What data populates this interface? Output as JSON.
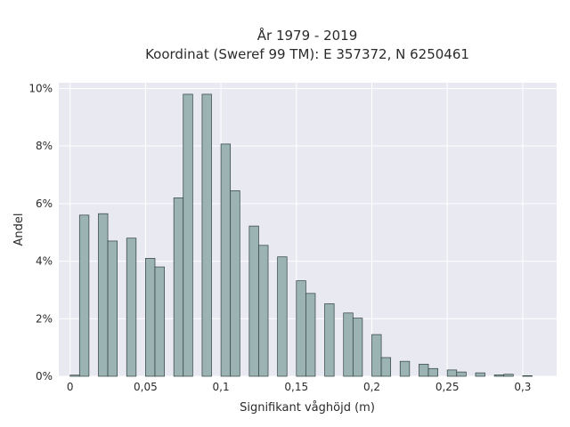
{
  "chart_data": {
    "type": "bar",
    "title_lines": [
      "År 1979 - 2019",
      "Koordinat (Sweref 99 TM): E 357372, N 6250461"
    ],
    "xlabel": "Signifikant våghöjd (m)",
    "ylabel": "Andel",
    "x_tick_values": [
      0,
      0.05,
      0.1,
      0.15,
      0.2,
      0.25,
      0.3
    ],
    "x_tick_labels": [
      "0",
      "0,05",
      "0,1",
      "0,15",
      "0,2",
      "0,25",
      "0,3"
    ],
    "y_tick_values": [
      0,
      2,
      4,
      6,
      8,
      10
    ],
    "y_tick_labels": [
      "0%",
      "2%",
      "4%",
      "6%",
      "8%",
      "10%"
    ],
    "xlim": [
      -0.0075,
      0.3225
    ],
    "ylim": [
      0,
      10.2
    ],
    "bin_width": 0.00625,
    "bar_color": "#9bb3b3",
    "bar_edge_color": "#2f3f3f",
    "plot_background": "#e9e9f1",
    "grid": true,
    "series": [
      {
        "x": [
          0.0,
          0.00625,
          0.0125,
          0.01875,
          0.025,
          0.03125,
          0.0375,
          0.04375,
          0.05,
          0.05625,
          0.0625,
          0.06875,
          0.075,
          0.08125,
          0.0875,
          0.09375,
          0.1,
          0.10625,
          0.1125,
          0.11875,
          0.125,
          0.13125,
          0.1375,
          0.14375,
          0.15,
          0.15625,
          0.1625,
          0.16875,
          0.175,
          0.18125,
          0.1875,
          0.19375,
          0.2,
          0.20625,
          0.2125,
          0.21875,
          0.225,
          0.23125,
          0.2375,
          0.24375,
          0.25,
          0.25625,
          0.2625,
          0.26875,
          0.275,
          0.28125,
          0.2875,
          0.29375,
          0.3
        ],
        "values": [
          0.04,
          5.6,
          0,
          5.65,
          4.7,
          0,
          4.8,
          0,
          4.1,
          3.8,
          0,
          6.2,
          9.8,
          0,
          9.8,
          0,
          8.07,
          6.45,
          0,
          5.22,
          4.55,
          0,
          4.15,
          0,
          3.32,
          2.88,
          0,
          2.52,
          0,
          2.2,
          2.02,
          0,
          1.45,
          0.65,
          0,
          0.52,
          0,
          0.42,
          0.27,
          0,
          0.22,
          0.15,
          0,
          0.12,
          0,
          0.05,
          0.07,
          0,
          0.02
        ]
      }
    ]
  }
}
